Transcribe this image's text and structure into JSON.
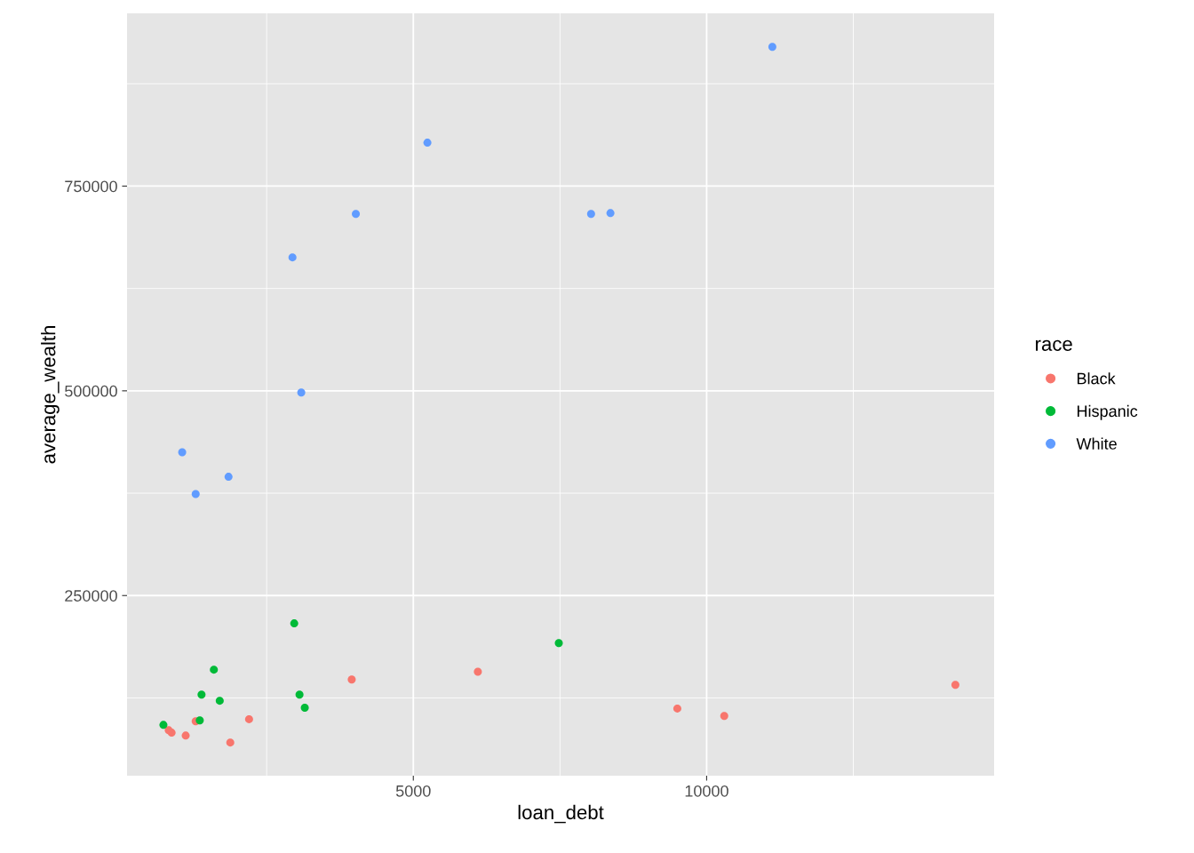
{
  "chart_data": {
    "type": "scatter",
    "xlabel": "loan_debt",
    "ylabel": "average_wealth",
    "legend_title": "race",
    "xlim": [
      120,
      14900
    ],
    "ylim": [
      30000,
      961000
    ],
    "xticks": [
      {
        "value": 2500,
        "label": null
      },
      5000,
      {
        "value": 7500,
        "label": null
      },
      10000,
      {
        "value": 12500,
        "label": null
      }
    ],
    "yticks": [
      {
        "value": 125000,
        "label": null
      },
      250000,
      {
        "value": 375000,
        "label": null
      },
      500000,
      {
        "value": 625000,
        "label": null
      },
      750000,
      {
        "value": 875000,
        "label": null
      }
    ],
    "grid": true,
    "legend": "right",
    "marker": "circle",
    "series": [
      {
        "name": "Black",
        "color": "#f8766d",
        "x": [
          14240,
          6100,
          3950,
          9500,
          10300,
          2200,
          1290,
          1880,
          1120,
          880,
          830
        ],
        "values": [
          141000,
          157000,
          147500,
          112000,
          103000,
          99000,
          96500,
          70500,
          79000,
          82500,
          85500
        ]
      },
      {
        "name": "Hispanic",
        "color": "#00ba38",
        "x": [
          2970,
          7480,
          1600,
          1390,
          3060,
          1700,
          3150,
          1360,
          740
        ],
        "values": [
          216000,
          192000,
          159500,
          129000,
          129000,
          121500,
          113000,
          97500,
          92000
        ]
      },
      {
        "name": "White",
        "color": "#619cff",
        "x": [
          11120,
          5240,
          4020,
          2940,
          8030,
          8360,
          3090,
          1060,
          1290,
          1850
        ],
        "values": [
          920000,
          803000,
          716000,
          663000,
          716000,
          717000,
          498000,
          425000,
          374000,
          395000
        ]
      }
    ]
  }
}
